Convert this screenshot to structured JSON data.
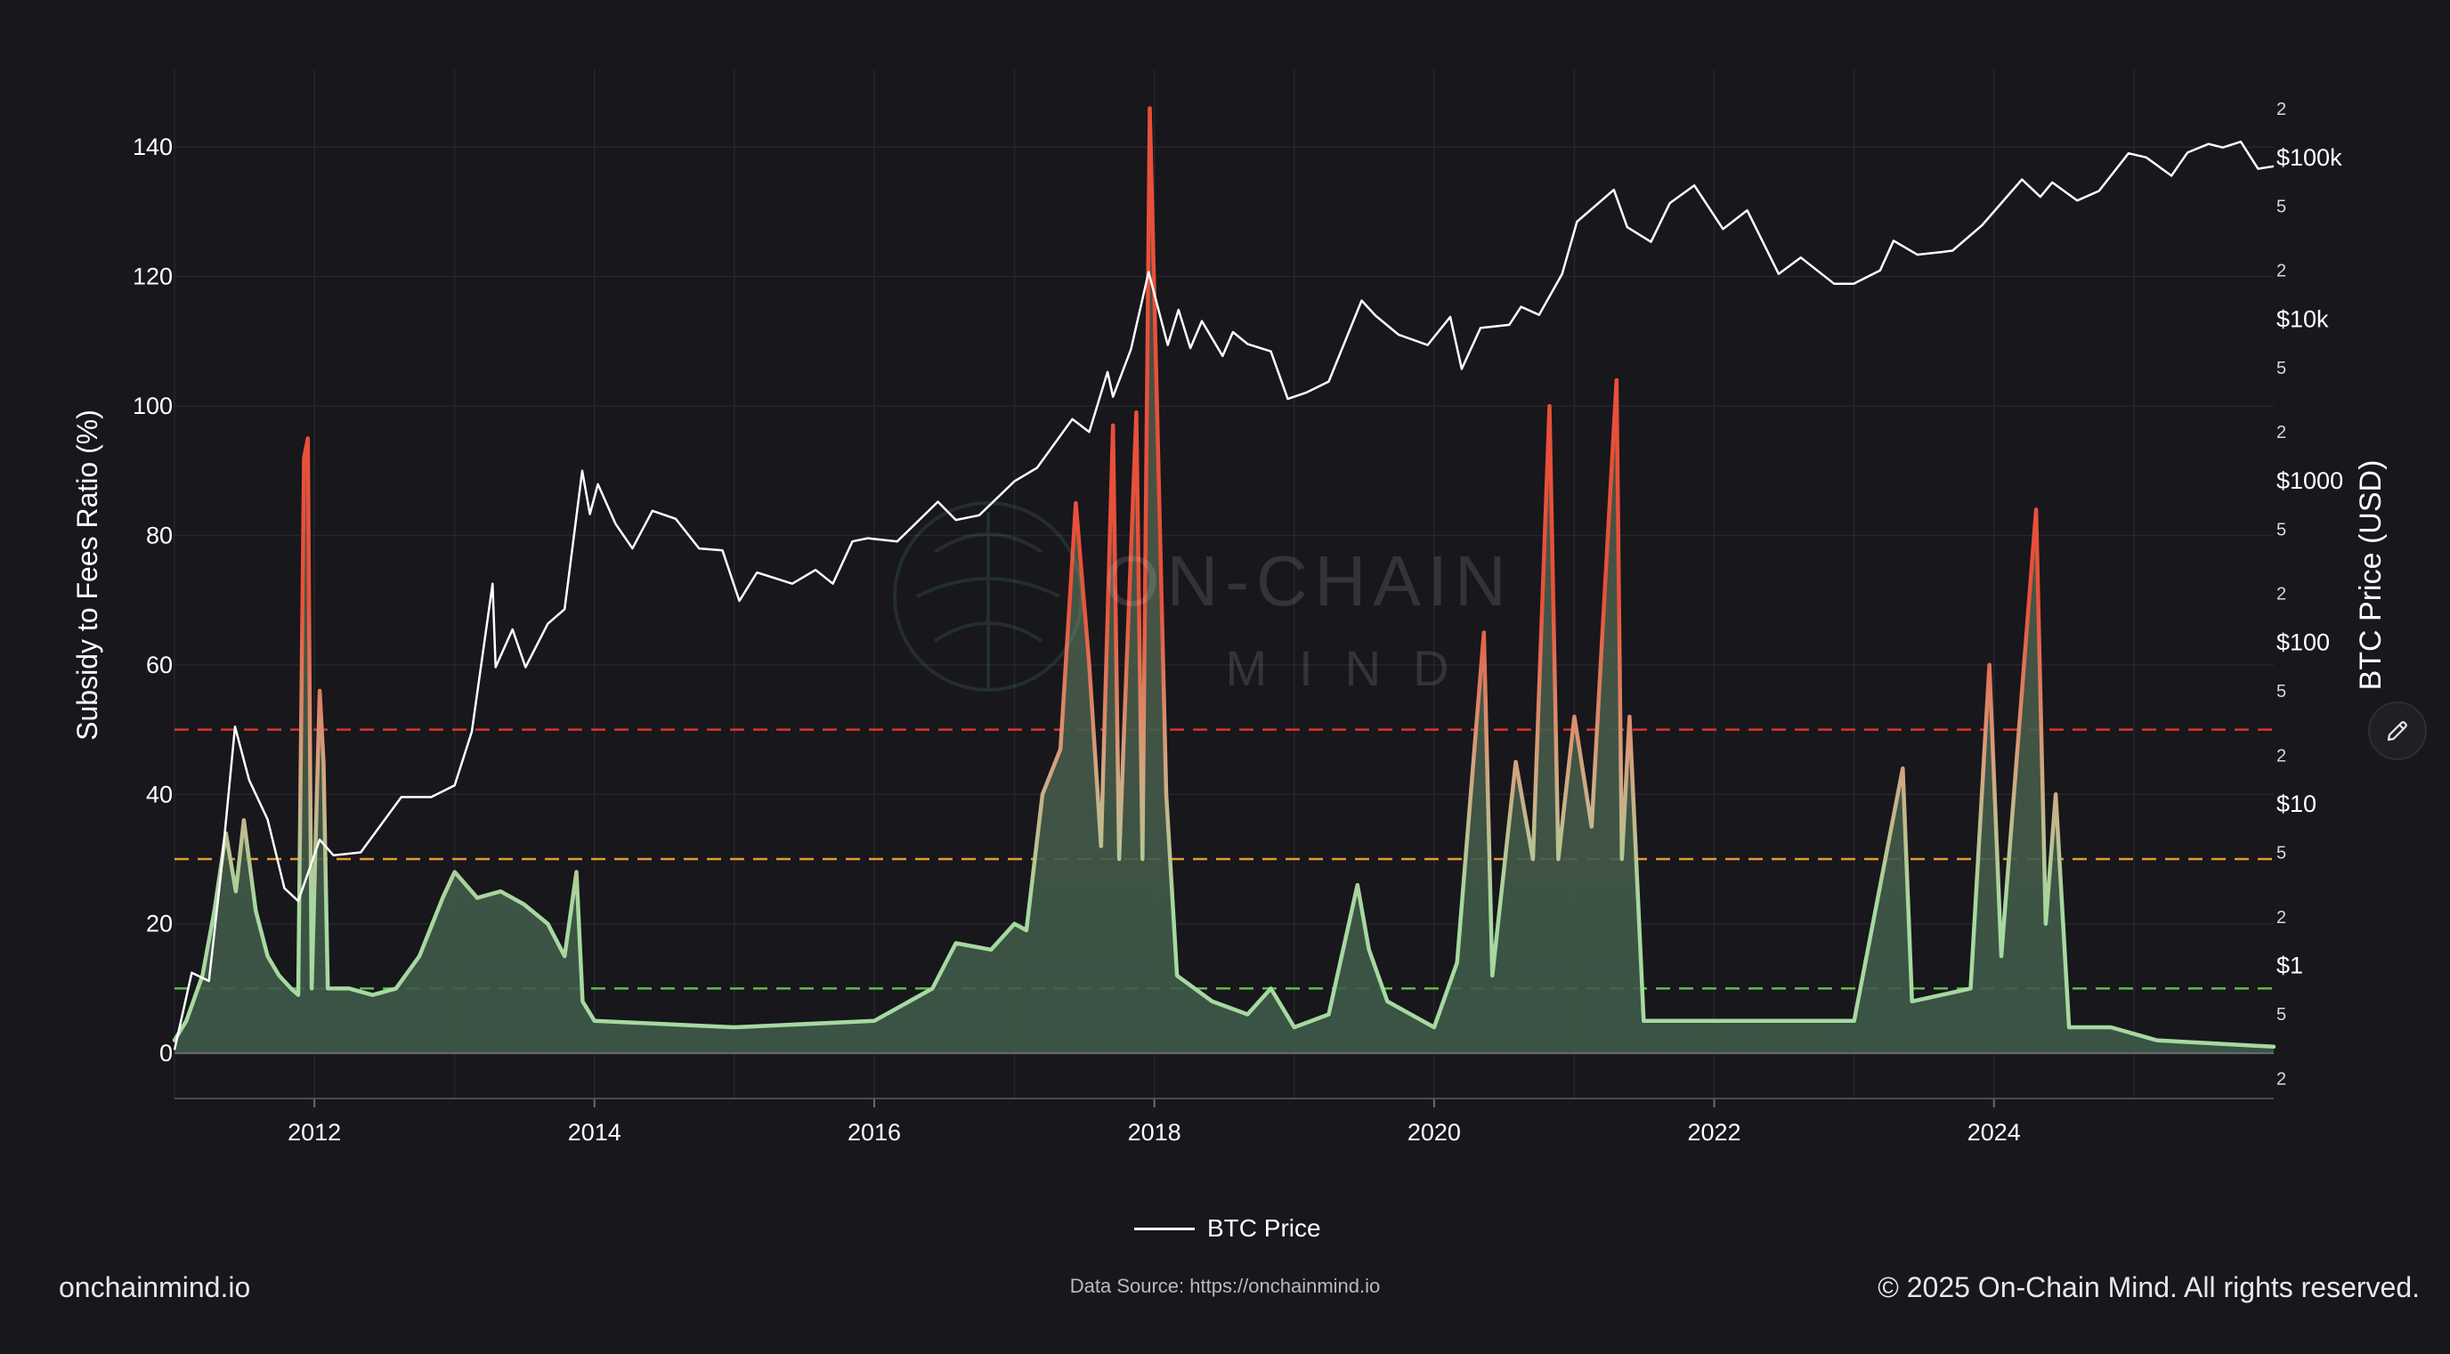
{
  "footer": {
    "site": "onchainmind.io",
    "source": "Data Source: https://onchainmind.io",
    "copyright": "© 2025 On-Chain Mind. All rights reserved."
  },
  "watermark": {
    "line1": "ON-CHAIN",
    "line2": "MIND"
  },
  "colors": {
    "background": "#17171c",
    "grid": "#26262d",
    "price_line": "#ffffff",
    "ratio_low": "#a6d9a0",
    "ratio_mid": "#d4a27e",
    "ratio_high": "#e8503a",
    "area_fill": "#3d5a48",
    "threshold_red": "#d9342b",
    "threshold_orange": "#e49a2d",
    "threshold_green": "#5cbf4a"
  },
  "icons": {
    "edit": "pencil-icon"
  },
  "chart_data": {
    "type": "line",
    "legend": {
      "entries": [
        "BTC Price"
      ],
      "placement": "bottom-center"
    },
    "grid": true,
    "x": {
      "range": [
        "2011-01-01",
        "2025-12-31"
      ],
      "ticks": [
        "2012",
        "2014",
        "2016",
        "2018",
        "2020",
        "2022",
        "2024"
      ]
    },
    "y_left": {
      "label": "Subsidy to Fees Ratio (%)",
      "range": [
        -7,
        152
      ],
      "ticks": [
        0,
        20,
        40,
        60,
        80,
        100,
        120,
        140
      ]
    },
    "y_right": {
      "label": "BTC Price (USD)",
      "scale": "log",
      "range": [
        0.15,
        350000
      ],
      "major_ticks": [
        {
          "value": 1,
          "label": "$1"
        },
        {
          "value": 10,
          "label": "$10"
        },
        {
          "value": 100,
          "label": "$100"
        },
        {
          "value": 1000,
          "label": "$1000"
        },
        {
          "value": 10000,
          "label": "$10k"
        },
        {
          "value": 100000,
          "label": "$100k"
        }
      ],
      "minor_ticks": [
        {
          "value": 0.2,
          "label": "2"
        },
        {
          "value": 0.5,
          "label": "5"
        },
        {
          "value": 2,
          "label": "2"
        },
        {
          "value": 5,
          "label": "5"
        },
        {
          "value": 20,
          "label": "2"
        },
        {
          "value": 50,
          "label": "5"
        },
        {
          "value": 200,
          "label": "2"
        },
        {
          "value": 500,
          "label": "5"
        },
        {
          "value": 2000,
          "label": "2"
        },
        {
          "value": 5000,
          "label": "5"
        },
        {
          "value": 20000,
          "label": "2"
        },
        {
          "value": 50000,
          "label": "5"
        },
        {
          "value": 200000,
          "label": "2"
        }
      ]
    },
    "thresholds": [
      {
        "value": 50,
        "color": "#d9342b"
      },
      {
        "value": 30,
        "color": "#e49a2d"
      },
      {
        "value": 10,
        "color": "#5cbf4a"
      }
    ],
    "series": [
      {
        "name": "BTC Price",
        "axis": "right",
        "points": [
          [
            "2011-01-01",
            0.3
          ],
          [
            "2011-02-15",
            0.9
          ],
          [
            "2011-04-01",
            0.8
          ],
          [
            "2011-05-01",
            3.5
          ],
          [
            "2011-06-08",
            30
          ],
          [
            "2011-07-15",
            14
          ],
          [
            "2011-09-01",
            8
          ],
          [
            "2011-10-15",
            3
          ],
          [
            "2011-11-20",
            2.5
          ],
          [
            "2012-01-15",
            6
          ],
          [
            "2012-02-20",
            4.8
          ],
          [
            "2012-05-01",
            5
          ],
          [
            "2012-08-15",
            11
          ],
          [
            "2012-11-01",
            11
          ],
          [
            "2013-01-01",
            13
          ],
          [
            "2013-02-15",
            28
          ],
          [
            "2013-04-10",
            230
          ],
          [
            "2013-04-18",
            70
          ],
          [
            "2013-06-01",
            120
          ],
          [
            "2013-07-05",
            70
          ],
          [
            "2013-09-01",
            130
          ],
          [
            "2013-10-15",
            160
          ],
          [
            "2013-11-30",
            1150
          ],
          [
            "2013-12-20",
            620
          ],
          [
            "2014-01-10",
            950
          ],
          [
            "2014-02-25",
            540
          ],
          [
            "2014-04-10",
            380
          ],
          [
            "2014-06-01",
            650
          ],
          [
            "2014-08-01",
            580
          ],
          [
            "2014-10-01",
            380
          ],
          [
            "2014-12-01",
            370
          ],
          [
            "2015-01-14",
            180
          ],
          [
            "2015-03-01",
            270
          ],
          [
            "2015-06-01",
            230
          ],
          [
            "2015-08-01",
            280
          ],
          [
            "2015-09-15",
            230
          ],
          [
            "2015-11-05",
            420
          ],
          [
            "2015-12-15",
            440
          ],
          [
            "2016-03-01",
            420
          ],
          [
            "2016-06-15",
            740
          ],
          [
            "2016-08-01",
            570
          ],
          [
            "2016-10-01",
            610
          ],
          [
            "2017-01-01",
            990
          ],
          [
            "2017-03-01",
            1200
          ],
          [
            "2017-06-01",
            2400
          ],
          [
            "2017-07-15",
            2000
          ],
          [
            "2017-09-01",
            4700
          ],
          [
            "2017-09-15",
            3300
          ],
          [
            "2017-11-01",
            6500
          ],
          [
            "2017-12-17",
            19500
          ],
          [
            "2018-02-05",
            6900
          ],
          [
            "2018-03-05",
            11400
          ],
          [
            "2018-04-05",
            6600
          ],
          [
            "2018-05-05",
            9700
          ],
          [
            "2018-06-28",
            5900
          ],
          [
            "2018-07-25",
            8300
          ],
          [
            "2018-09-01",
            7000
          ],
          [
            "2018-11-01",
            6300
          ],
          [
            "2018-12-15",
            3200
          ],
          [
            "2019-02-01",
            3500
          ],
          [
            "2019-04-01",
            4100
          ],
          [
            "2019-06-26",
            13000
          ],
          [
            "2019-08-01",
            10500
          ],
          [
            "2019-09-30",
            8000
          ],
          [
            "2019-12-15",
            6900
          ],
          [
            "2020-02-12",
            10300
          ],
          [
            "2020-03-13",
            4900
          ],
          [
            "2020-05-01",
            8800
          ],
          [
            "2020-07-15",
            9200
          ],
          [
            "2020-08-15",
            11900
          ],
          [
            "2020-10-01",
            10600
          ],
          [
            "2020-11-30",
            19000
          ],
          [
            "2021-01-08",
            40000
          ],
          [
            "2021-04-14",
            63000
          ],
          [
            "2021-05-19",
            37000
          ],
          [
            "2021-07-20",
            30000
          ],
          [
            "2021-09-07",
            52000
          ],
          [
            "2021-11-10",
            67000
          ],
          [
            "2022-01-24",
            36000
          ],
          [
            "2022-03-28",
            47000
          ],
          [
            "2022-06-18",
            19000
          ],
          [
            "2022-08-15",
            24000
          ],
          [
            "2022-11-10",
            16500
          ],
          [
            "2022-12-31",
            16500
          ],
          [
            "2023-03-10",
            20000
          ],
          [
            "2023-04-14",
            30500
          ],
          [
            "2023-06-15",
            25000
          ],
          [
            "2023-08-20",
            26000
          ],
          [
            "2023-09-15",
            26500
          ],
          [
            "2023-12-01",
            38000
          ],
          [
            "2024-03-14",
            73000
          ],
          [
            "2024-05-01",
            57000
          ],
          [
            "2024-06-01",
            70000
          ],
          [
            "2024-08-05",
            54000
          ],
          [
            "2024-10-01",
            62000
          ],
          [
            "2024-12-17",
            106000
          ],
          [
            "2025-02-01",
            100000
          ],
          [
            "2025-04-08",
            77000
          ],
          [
            "2025-05-20",
            107000
          ],
          [
            "2025-07-14",
            121000
          ],
          [
            "2025-08-20",
            115000
          ],
          [
            "2025-10-06",
            125000
          ],
          [
            "2025-11-20",
            85000
          ],
          [
            "2025-12-31",
            88000
          ]
        ]
      },
      {
        "name": "Subsidy to Fees Ratio",
        "axis": "left",
        "points": [
          [
            "2011-01-01",
            2
          ],
          [
            "2011-02-01",
            5
          ],
          [
            "2011-03-15",
            12
          ],
          [
            "2011-04-15",
            22
          ],
          [
            "2011-05-15",
            34
          ],
          [
            "2011-06-10",
            25
          ],
          [
            "2011-07-01",
            36
          ],
          [
            "2011-08-01",
            22
          ],
          [
            "2011-09-01",
            15
          ],
          [
            "2011-10-01",
            12
          ],
          [
            "2011-11-01",
            10
          ],
          [
            "2011-11-20",
            9
          ],
          [
            "2011-12-05",
            92
          ],
          [
            "2011-12-15",
            95
          ],
          [
            "2011-12-25",
            10
          ],
          [
            "2012-01-15",
            56
          ],
          [
            "2012-01-25",
            45
          ],
          [
            "2012-02-05",
            10
          ],
          [
            "2012-04-01",
            10
          ],
          [
            "2012-06-01",
            9
          ],
          [
            "2012-08-01",
            10
          ],
          [
            "2012-10-01",
            15
          ],
          [
            "2012-12-01",
            24
          ],
          [
            "2013-01-01",
            28
          ],
          [
            "2013-03-01",
            24
          ],
          [
            "2013-05-01",
            25
          ],
          [
            "2013-07-01",
            23
          ],
          [
            "2013-09-01",
            20
          ],
          [
            "2013-10-15",
            15
          ],
          [
            "2013-11-15",
            28
          ],
          [
            "2013-12-01",
            8
          ],
          [
            "2014-01-01",
            5
          ],
          [
            "2015-01-01",
            4
          ],
          [
            "2016-01-01",
            5
          ],
          [
            "2016-06-01",
            10
          ],
          [
            "2016-08-01",
            17
          ],
          [
            "2016-11-01",
            16
          ],
          [
            "2017-01-01",
            20
          ],
          [
            "2017-02-01",
            19
          ],
          [
            "2017-03-15",
            40
          ],
          [
            "2017-05-01",
            47
          ],
          [
            "2017-06-10",
            85
          ],
          [
            "2017-07-15",
            60
          ],
          [
            "2017-08-15",
            32
          ],
          [
            "2017-09-15",
            97
          ],
          [
            "2017-10-01",
            30
          ],
          [
            "2017-11-15",
            99
          ],
          [
            "2017-12-01",
            30
          ],
          [
            "2017-12-20",
            146
          ],
          [
            "2018-01-10",
            95
          ],
          [
            "2018-02-01",
            40
          ],
          [
            "2018-03-01",
            12
          ],
          [
            "2018-06-01",
            8
          ],
          [
            "2018-09-01",
            6
          ],
          [
            "2018-11-01",
            10
          ],
          [
            "2019-01-01",
            4
          ],
          [
            "2019-04-01",
            6
          ],
          [
            "2019-06-15",
            26
          ],
          [
            "2019-07-15",
            16
          ],
          [
            "2019-09-01",
            8
          ],
          [
            "2020-01-01",
            4
          ],
          [
            "2020-03-01",
            14
          ],
          [
            "2020-05-10",
            65
          ],
          [
            "2020-06-01",
            12
          ],
          [
            "2020-08-01",
            45
          ],
          [
            "2020-09-15",
            30
          ],
          [
            "2020-10-28",
            100
          ],
          [
            "2020-11-20",
            30
          ],
          [
            "2021-01-01",
            52
          ],
          [
            "2021-02-15",
            35
          ],
          [
            "2021-04-21",
            104
          ],
          [
            "2021-05-05",
            30
          ],
          [
            "2021-05-25",
            52
          ],
          [
            "2021-07-01",
            5
          ],
          [
            "2022-01-01",
            5
          ],
          [
            "2022-06-01",
            5
          ],
          [
            "2023-01-01",
            5
          ],
          [
            "2023-05-08",
            44
          ],
          [
            "2023-06-01",
            8
          ],
          [
            "2023-11-01",
            10
          ],
          [
            "2023-12-20",
            60
          ],
          [
            "2024-01-20",
            15
          ],
          [
            "2024-04-20",
            84
          ],
          [
            "2024-05-15",
            20
          ],
          [
            "2024-06-10",
            40
          ],
          [
            "2024-07-15",
            4
          ],
          [
            "2024-11-01",
            4
          ],
          [
            "2025-03-01",
            2
          ],
          [
            "2025-12-31",
            1
          ]
        ]
      }
    ]
  }
}
